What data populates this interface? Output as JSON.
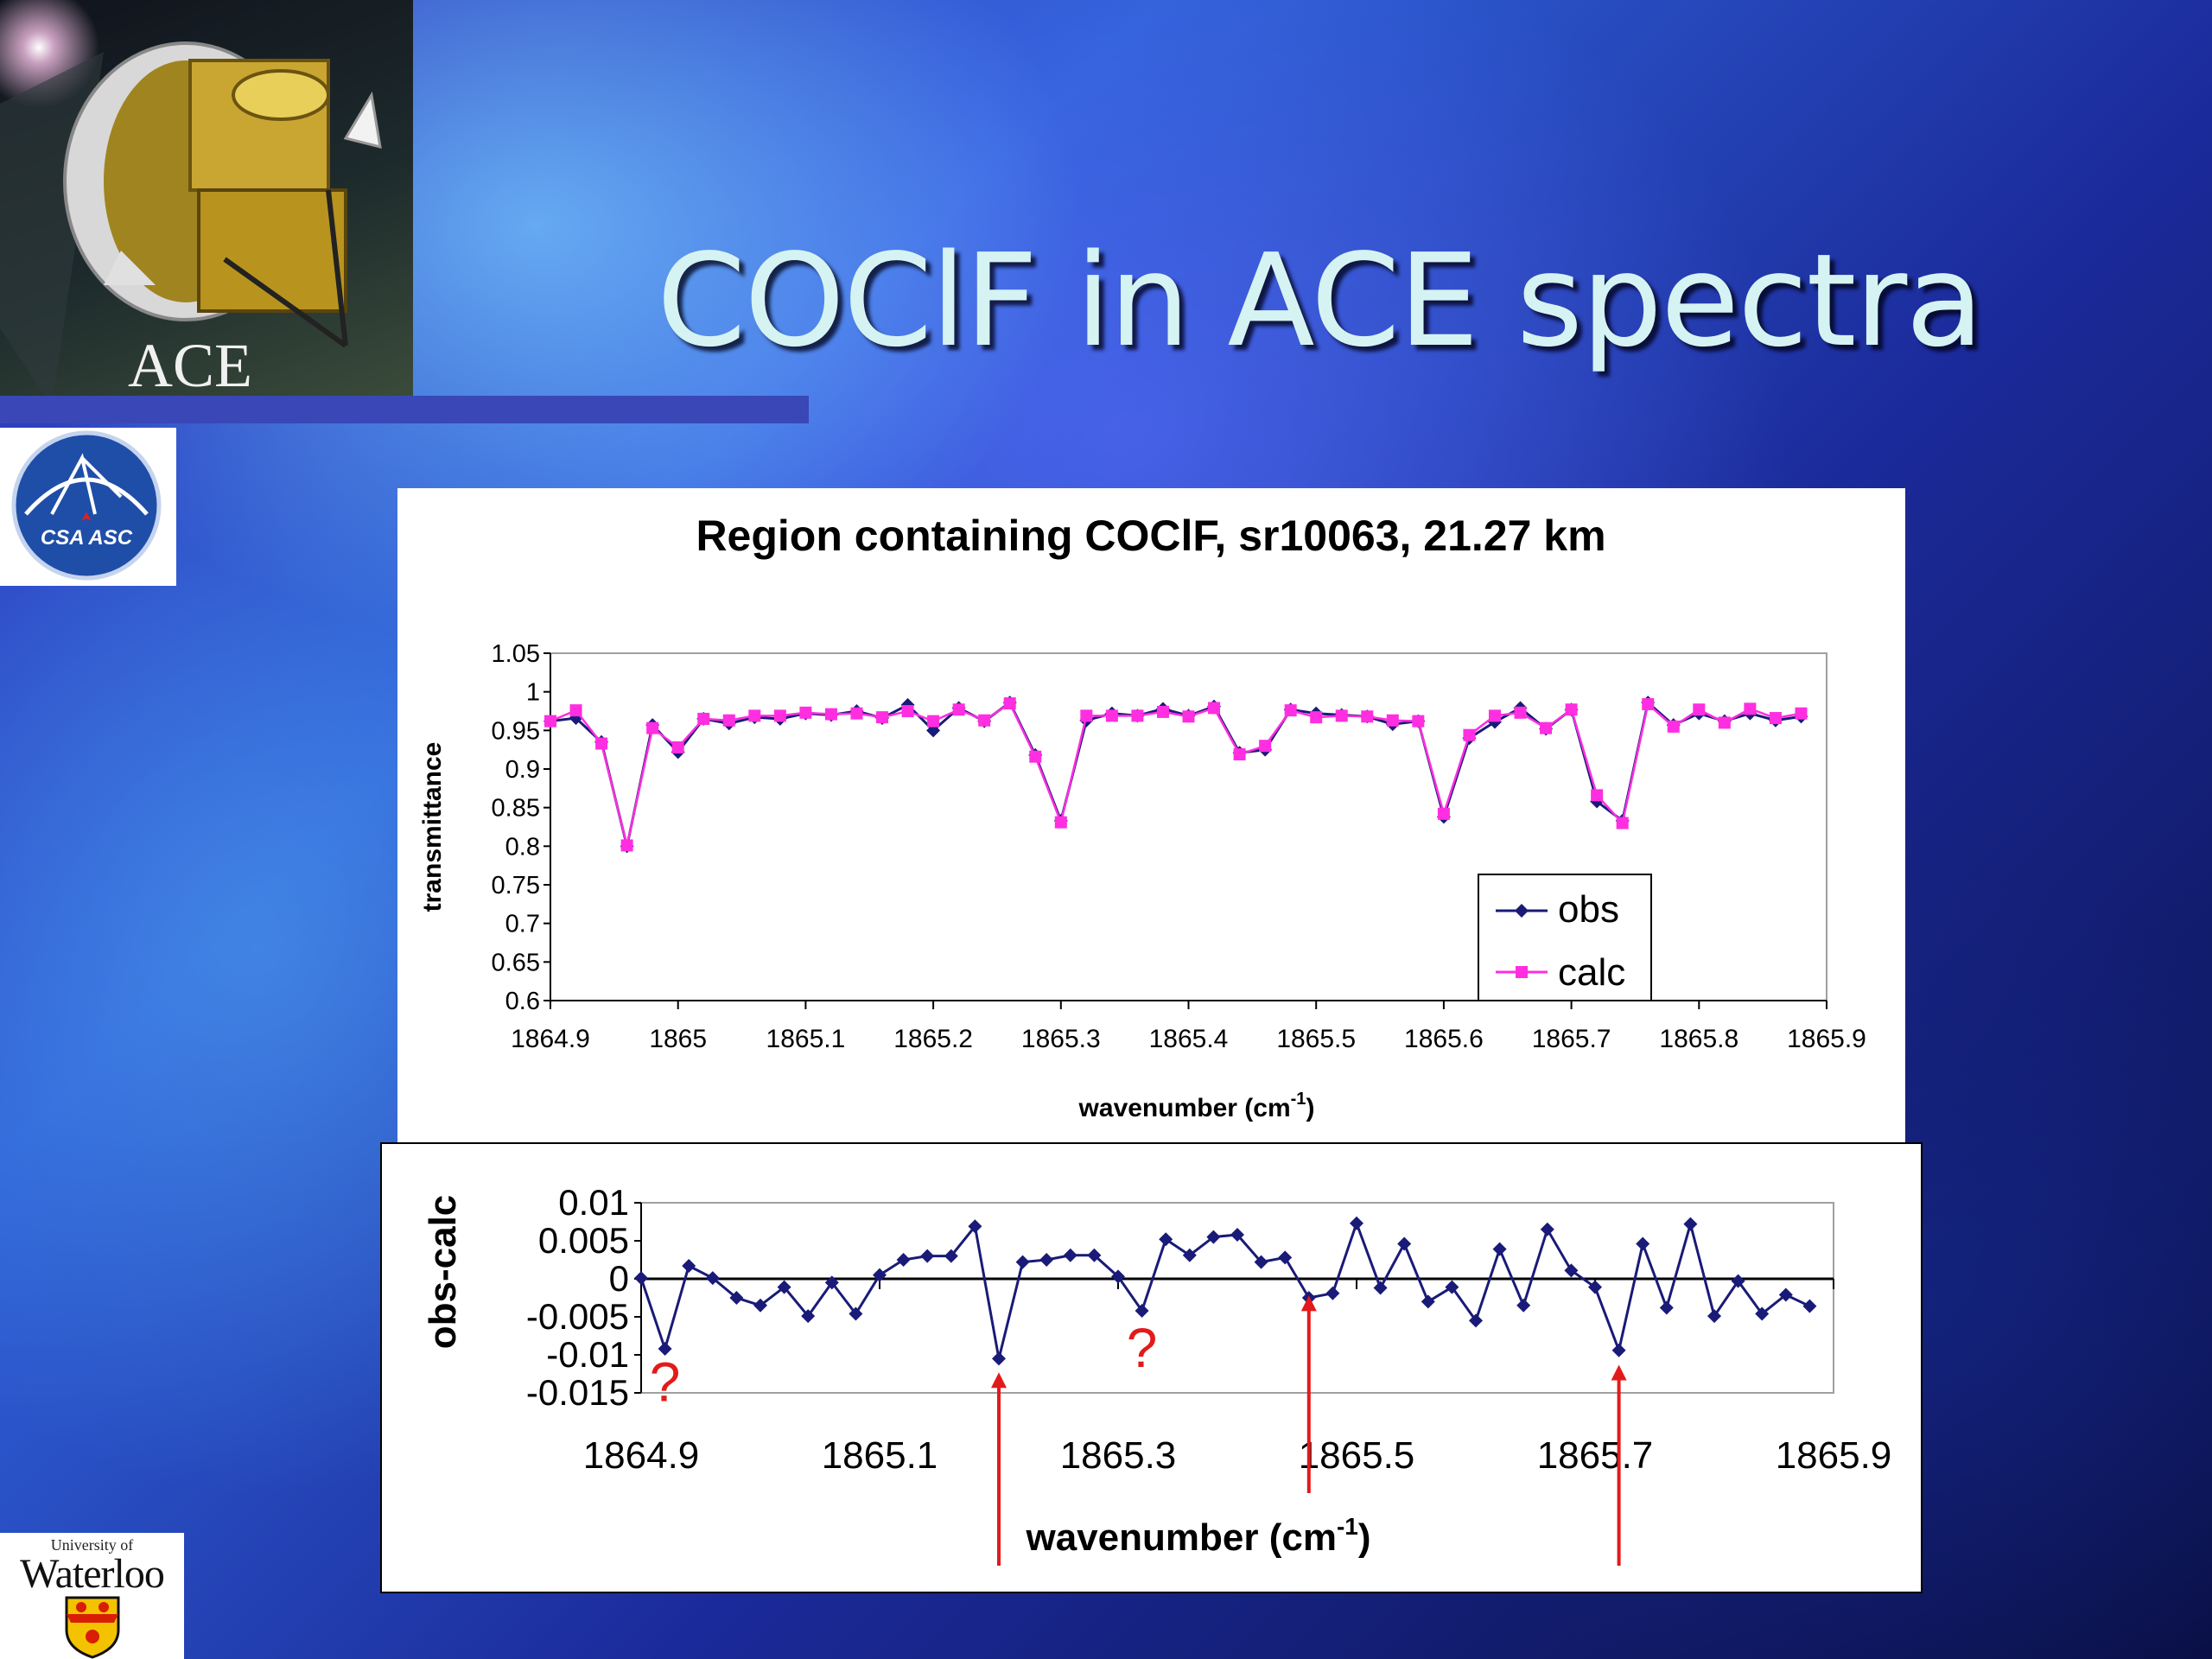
{
  "slide": {
    "title": "COClF in ACE spectra",
    "logo_ace_text": "ACE",
    "logo_csa_text": "CSA ASC",
    "logo_uw_small": "University of",
    "logo_uw_big": "Waterloo"
  },
  "colors": {
    "obs": "#1a1a78",
    "calc": "#ff2ee0",
    "arrow": "#e31a1a",
    "title": "#d6f3f3"
  },
  "icons": [
    "ace-satellite-icon",
    "csa-asc-logo-icon",
    "university-waterloo-crest-icon"
  ],
  "chart_data": [
    {
      "type": "line",
      "title": "Region containing COClF, sr10063, 21.27 km",
      "xlabel": "wavenumber (cm",
      "xlabel_sup": "-1",
      "xlabel_end": ")",
      "ylabel": "transmittance",
      "xlim": [
        1864.9,
        1865.9
      ],
      "ylim": [
        0.6,
        1.05
      ],
      "x_ticks": [
        "1864.9",
        "1865",
        "1865.1",
        "1865.2",
        "1865.3",
        "1865.4",
        "1865.5",
        "1865.6",
        "1865.7",
        "1865.8",
        "1865.9"
      ],
      "y_ticks": [
        "1.05",
        "1",
        "0.95",
        "0.9",
        "0.85",
        "0.8",
        "0.75",
        "0.7",
        "0.65",
        "0.6"
      ],
      "legend": "bottom-right",
      "x": [
        1864.9,
        1864.92,
        1864.94,
        1864.96,
        1864.98,
        1865.0,
        1865.02,
        1865.04,
        1865.06,
        1865.08,
        1865.1,
        1865.12,
        1865.14,
        1865.16,
        1865.18,
        1865.2,
        1865.22,
        1865.24,
        1865.26,
        1865.28,
        1865.3,
        1865.32,
        1865.34,
        1865.36,
        1865.38,
        1865.4,
        1865.42,
        1865.44,
        1865.46,
        1865.48,
        1865.5,
        1865.52,
        1865.54,
        1865.56,
        1865.58,
        1865.6,
        1865.62,
        1865.64,
        1865.66,
        1865.68,
        1865.7,
        1865.72,
        1865.74,
        1865.76,
        1865.78,
        1865.8,
        1865.82,
        1865.84,
        1865.86,
        1865.88
      ],
      "series": [
        {
          "name": "obs",
          "values": [
            0.962,
            0.966,
            0.935,
            0.8,
            0.957,
            0.922,
            0.965,
            0.959,
            0.967,
            0.965,
            0.972,
            0.97,
            0.975,
            0.966,
            0.983,
            0.95,
            0.979,
            0.962,
            0.986,
            0.918,
            0.833,
            0.963,
            0.972,
            0.969,
            0.978,
            0.969,
            0.981,
            0.921,
            0.925,
            0.977,
            0.972,
            0.97,
            0.968,
            0.958,
            0.962,
            0.838,
            0.94,
            0.961,
            0.979,
            0.952,
            0.977,
            0.858,
            0.833,
            0.986,
            0.957,
            0.972,
            0.962,
            0.972,
            0.963,
            0.968
          ]
        },
        {
          "name": "calc",
          "values": [
            0.962,
            0.976,
            0.933,
            0.801,
            0.953,
            0.928,
            0.965,
            0.963,
            0.969,
            0.969,
            0.973,
            0.971,
            0.972,
            0.967,
            0.975,
            0.962,
            0.977,
            0.963,
            0.985,
            0.916,
            0.831,
            0.969,
            0.969,
            0.969,
            0.974,
            0.968,
            0.979,
            0.919,
            0.93,
            0.976,
            0.967,
            0.969,
            0.968,
            0.963,
            0.962,
            0.842,
            0.944,
            0.969,
            0.973,
            0.953,
            0.977,
            0.866,
            0.83,
            0.984,
            0.955,
            0.977,
            0.96,
            0.978,
            0.966,
            0.972
          ]
        }
      ]
    },
    {
      "type": "line",
      "title": "",
      "xlabel": "wavenumber (cm",
      "xlabel_sup": "-1",
      "xlabel_end": ")",
      "ylabel": "obs-calc",
      "xlim": [
        1864.9,
        1865.9
      ],
      "ylim": [
        -0.015,
        0.01
      ],
      "x_ticks": [
        "1864.9",
        "1865.1",
        "1865.3",
        "1865.5",
        "1865.7",
        "1865.9"
      ],
      "y_ticks": [
        "0.01",
        "0.005",
        "0",
        "-0.005",
        "-0.01",
        "-0.015"
      ],
      "x": [
        1864.9,
        1864.92,
        1864.94,
        1864.96,
        1864.98,
        1865.0,
        1865.02,
        1865.04,
        1865.06,
        1865.08,
        1865.1,
        1865.12,
        1865.14,
        1865.16,
        1865.18,
        1865.2,
        1865.22,
        1865.24,
        1865.26,
        1865.28,
        1865.3,
        1865.32,
        1865.34,
        1865.36,
        1865.38,
        1865.4,
        1865.42,
        1865.44,
        1865.46,
        1865.48,
        1865.5,
        1865.52,
        1865.54,
        1865.56,
        1865.58,
        1865.6,
        1865.62,
        1865.64,
        1865.66,
        1865.68,
        1865.7,
        1865.72,
        1865.74,
        1865.76,
        1865.78,
        1865.8,
        1865.82,
        1865.84,
        1865.86,
        1865.88
      ],
      "series": [
        {
          "name": "obs-calc",
          "values": [
            0.0001,
            -0.0092,
            0.0017,
            0.0001,
            -0.0025,
            -0.0035,
            -0.0011,
            -0.0049,
            -0.0005,
            -0.0046,
            0.0005,
            0.0025,
            0.003,
            0.003,
            0.0069,
            -0.0105,
            0.0022,
            0.0025,
            0.0031,
            0.0031,
            0.0003,
            -0.0042,
            0.0052,
            0.0031,
            0.0055,
            0.0058,
            0.0022,
            0.0028,
            -0.0025,
            -0.0019,
            0.0073,
            -0.0012,
            0.0046,
            -0.003,
            -0.0011,
            -0.0055,
            0.0039,
            -0.0035,
            0.0065,
            0.0011,
            -0.0011,
            -0.0094,
            0.0046,
            -0.0038,
            0.0072,
            -0.0049,
            -0.0003,
            -0.0046,
            -0.0021,
            -0.0036
          ]
        }
      ],
      "annotations": [
        {
          "text": "?",
          "x": 1864.92,
          "y": -0.0138
        },
        {
          "text": "?",
          "x": 1865.32,
          "y": -0.0093
        }
      ],
      "arrows_at_x": [
        1865.2,
        1865.46,
        1865.72
      ]
    }
  ]
}
